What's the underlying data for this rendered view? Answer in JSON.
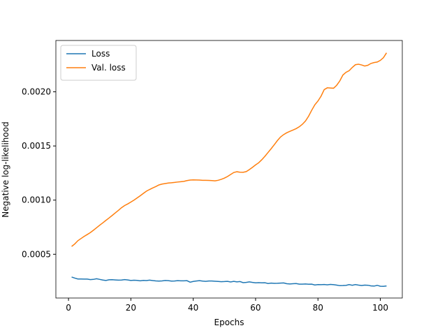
{
  "chart_data": {
    "type": "line",
    "x_label": "Epochs",
    "y_label": "Negative log-likelihood",
    "x": [
      1,
      2,
      3,
      4,
      5,
      6,
      7,
      8,
      9,
      10,
      11,
      12,
      13,
      14,
      15,
      16,
      17,
      18,
      19,
      20,
      21,
      22,
      23,
      24,
      25,
      26,
      27,
      28,
      29,
      30,
      31,
      32,
      33,
      34,
      35,
      36,
      37,
      38,
      39,
      40,
      41,
      42,
      43,
      44,
      45,
      46,
      47,
      48,
      49,
      50,
      51,
      52,
      53,
      54,
      55,
      56,
      57,
      58,
      59,
      60,
      61,
      62,
      63,
      64,
      65,
      66,
      67,
      68,
      69,
      70,
      71,
      72,
      73,
      74,
      75,
      76,
      77,
      78,
      79,
      80,
      81,
      82,
      83,
      84,
      85,
      86,
      87,
      88,
      89,
      90,
      91,
      92,
      93,
      94,
      95,
      96,
      97,
      98,
      99,
      100,
      101,
      102
    ],
    "series": [
      {
        "name": "Loss",
        "color": "#1f77b4",
        "values": [
          0.00029,
          0.00028,
          0.000272,
          0.000272,
          0.000271,
          0.000271,
          0.000266,
          0.000268,
          0.000274,
          0.000268,
          0.000262,
          0.000258,
          0.000264,
          0.000265,
          0.000263,
          0.000261,
          0.000262,
          0.000266,
          0.000263,
          0.000258,
          0.00026,
          0.000259,
          0.000255,
          0.000259,
          0.000257,
          0.000261,
          0.000257,
          0.000254,
          0.000252,
          0.000254,
          0.000258,
          0.000256,
          0.000252,
          0.000253,
          0.000256,
          0.000255,
          0.000255,
          0.000256,
          0.000242,
          0.000249,
          0.000253,
          0.000256,
          0.000252,
          0.00025,
          0.000253,
          0.000253,
          0.000251,
          0.000249,
          0.000247,
          0.000248,
          0.00025,
          0.000244,
          0.00025,
          0.000245,
          0.000248,
          0.000238,
          0.00024,
          0.000245,
          0.00024,
          0.000236,
          0.000238,
          0.000236,
          0.000237,
          0.00023,
          0.000234,
          0.000231,
          0.000232,
          0.000234,
          0.000235,
          0.000228,
          0.000226,
          0.000228,
          0.00023,
          0.000224,
          0.000224,
          0.000226,
          0.000223,
          0.000224,
          0.000216,
          0.00022,
          0.000219,
          0.000221,
          0.000218,
          0.000222,
          0.000219,
          0.000215,
          0.00021,
          0.000211,
          0.000213,
          0.00022,
          0.000214,
          0.00022,
          0.000215,
          0.000211,
          0.000215,
          0.000214,
          0.000208,
          0.000206,
          0.000213,
          0.000205,
          0.000204,
          0.000207
        ]
      },
      {
        "name": "Val. loss",
        "color": "#ff7f0e",
        "values": [
          0.000572,
          0.000595,
          0.000625,
          0.000645,
          0.000665,
          0.000682,
          0.0007,
          0.000722,
          0.000745,
          0.000768,
          0.00079,
          0.000813,
          0.000835,
          0.000858,
          0.000882,
          0.000905,
          0.00093,
          0.00095,
          0.000965,
          0.000982,
          0.001,
          0.00102,
          0.00104,
          0.001062,
          0.001083,
          0.001098,
          0.001112,
          0.001125,
          0.00114,
          0.001148,
          0.001153,
          0.001158,
          0.00116,
          0.001163,
          0.001167,
          0.00117,
          0.001173,
          0.00118,
          0.001185,
          0.001187,
          0.001186,
          0.001185,
          0.001183,
          0.001183,
          0.001182,
          0.00118,
          0.001178,
          0.001183,
          0.001192,
          0.001203,
          0.001218,
          0.001237,
          0.001255,
          0.001262,
          0.001258,
          0.001257,
          0.001263,
          0.001282,
          0.001303,
          0.001325,
          0.001345,
          0.001373,
          0.001405,
          0.00144,
          0.001475,
          0.001512,
          0.00155,
          0.001583,
          0.001605,
          0.001622,
          0.001635,
          0.001647,
          0.00166,
          0.001677,
          0.0017,
          0.00173,
          0.001775,
          0.00183,
          0.00188,
          0.001915,
          0.00196,
          0.00202,
          0.002037,
          0.002035,
          0.002033,
          0.00206,
          0.0021,
          0.002155,
          0.00218,
          0.002195,
          0.002225,
          0.00225,
          0.002255,
          0.002248,
          0.002238,
          0.002245,
          0.002262,
          0.00227,
          0.002275,
          0.00229,
          0.002315,
          0.00236
        ]
      }
    ],
    "xlim": [
      -4.05,
      107.05
    ],
    "xticks": [
      0,
      20,
      40,
      60,
      80,
      100
    ],
    "ylim": [
      9.6e-05,
      0.002474
    ],
    "yticks": [
      {
        "value": 0.0005,
        "label": "0.0005"
      },
      {
        "value": 0.001,
        "label": "0.0010"
      },
      {
        "value": 0.0015,
        "label": "0.0015"
      },
      {
        "value": 0.002,
        "label": "0.0020"
      }
    ],
    "legend": "upper left",
    "grid": false
  }
}
